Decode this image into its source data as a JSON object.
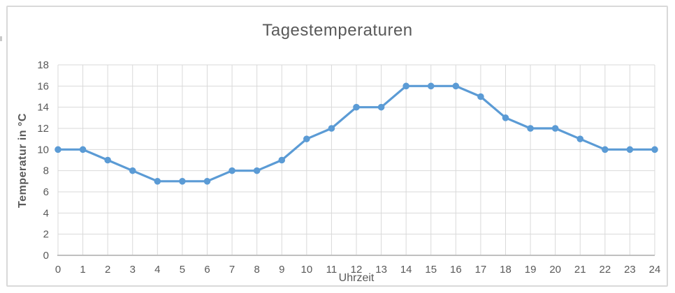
{
  "chart_data": {
    "type": "line",
    "title": "Tagestemperaturen",
    "xlabel": "Uhrzeit",
    "ylabel": "Temperatur in °C",
    "x": [
      0,
      1,
      2,
      3,
      4,
      5,
      6,
      7,
      8,
      9,
      10,
      11,
      12,
      13,
      14,
      15,
      16,
      17,
      18,
      19,
      20,
      21,
      22,
      23,
      24
    ],
    "series": [
      {
        "name": "Tagestemperaturen",
        "values": [
          10,
          10,
          9,
          8,
          7,
          7,
          7,
          8,
          8,
          9,
          11,
          12,
          14,
          14,
          16,
          16,
          16,
          15,
          13,
          12,
          12,
          11,
          10,
          10,
          10
        ]
      }
    ],
    "xlim": [
      0,
      24
    ],
    "ylim": [
      0,
      18
    ],
    "y_ticks": [
      0,
      2,
      4,
      6,
      8,
      10,
      12,
      14,
      16,
      18
    ],
    "x_tick_step": 1,
    "grid": "both",
    "legend": "none",
    "marker": "circle",
    "colors": {
      "line": "#5B9BD5",
      "marker": "#5B9BD5",
      "grid": "#D9D9D9",
      "axis_line": "#BFBFBF",
      "text": "#595959",
      "frame_border": "#D9D9D9",
      "background": "#FFFFFF"
    }
  }
}
